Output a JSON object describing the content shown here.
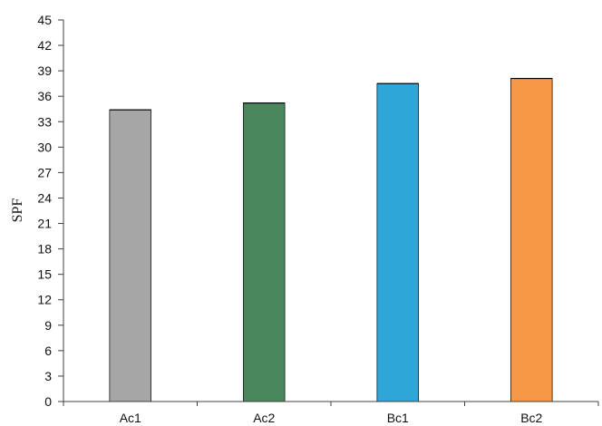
{
  "chart_data": {
    "type": "bar",
    "title": "",
    "xlabel": "",
    "ylabel": "SPF",
    "ylim": [
      0,
      45
    ],
    "yticks": [
      0,
      3,
      6,
      9,
      12,
      15,
      18,
      21,
      24,
      27,
      30,
      33,
      36,
      39,
      42,
      45
    ],
    "grid": false,
    "legend": "none",
    "categories": [
      "Ac1",
      "Ac2",
      "Bc1",
      "Bc2"
    ],
    "values": [
      34.4,
      35.2,
      37.5,
      38.1
    ],
    "colors": [
      "#a6a6a6",
      "#4a875c",
      "#2ea7d8",
      "#f79846"
    ]
  }
}
